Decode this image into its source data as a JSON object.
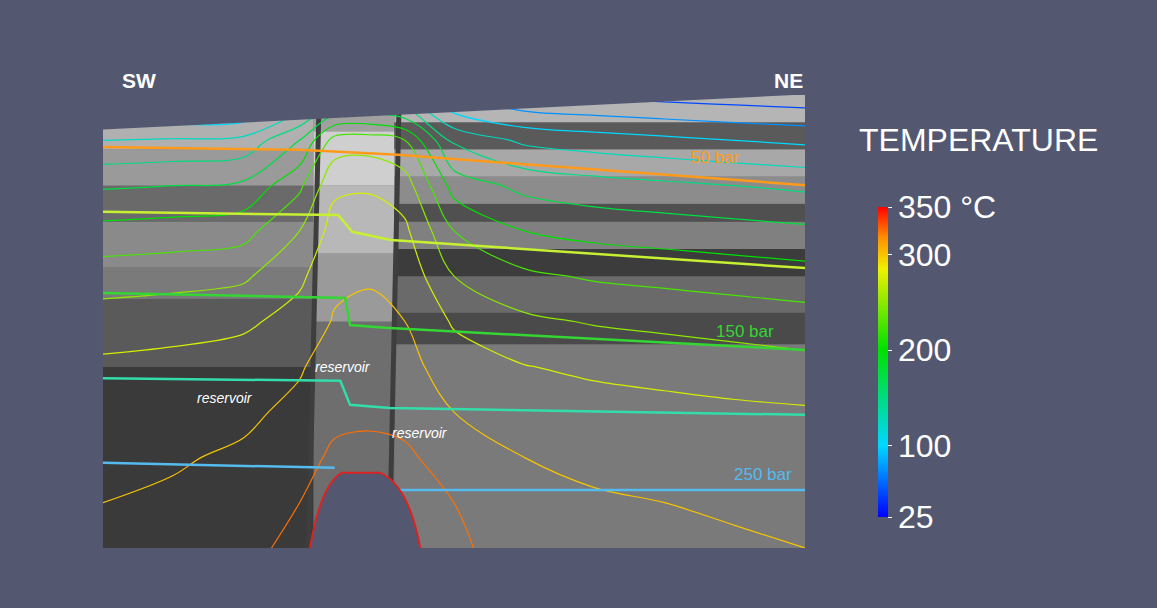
{
  "chart_data": {
    "type": "contour",
    "tick_labels": false,
    "xlim": [
      0,
      100
    ],
    "ylim": [
      0,
      100
    ],
    "corner_labels": {
      "left": "SW",
      "right": "NE"
    },
    "temperature": {
      "x": [
        0,
        10,
        20,
        28,
        33,
        38,
        43,
        50,
        60,
        70,
        80,
        90,
        100
      ],
      "y": [
        0,
        10,
        20,
        30,
        40,
        50,
        60,
        70,
        80,
        90,
        100
      ],
      "z": [
        [
          305,
          308,
          315,
          335,
          350,
          350,
          350,
          330,
          312,
          305,
          303,
          302,
          300
        ],
        [
          300,
          303,
          310,
          325,
          345,
          348,
          345,
          325,
          308,
          302,
          300,
          298,
          297
        ],
        [
          296,
          298,
          303,
          315,
          330,
          332,
          330,
          312,
          300,
          296,
          294,
          292,
          290
        ],
        [
          290,
          292,
          296,
          305,
          318,
          320,
          316,
          300,
          290,
          286,
          283,
          280,
          278
        ],
        [
          280,
          283,
          288,
          298,
          310,
          312,
          308,
          288,
          276,
          270,
          266,
          262,
          258
        ],
        [
          262,
          265,
          270,
          285,
          302,
          305,
          300,
          272,
          255,
          248,
          244,
          240,
          236
        ],
        [
          238,
          241,
          246,
          270,
          295,
          298,
          292,
          250,
          230,
          222,
          218,
          214,
          210
        ],
        [
          208,
          211,
          216,
          250,
          285,
          288,
          280,
          225,
          200,
          192,
          188,
          184,
          180
        ],
        [
          172,
          175,
          180,
          220,
          270,
          272,
          262,
          190,
          168,
          160,
          155,
          150,
          145
        ],
        [
          125,
          128,
          132,
          175,
          235,
          238,
          225,
          145,
          120,
          112,
          106,
          100,
          95
        ],
        [
          45,
          48,
          52,
          95,
          130,
          132,
          122,
          70,
          50,
          45,
          40,
          36,
          32
        ]
      ],
      "levels": {
        "start": 25,
        "end": 350,
        "step": 25
      }
    },
    "colorbar": {
      "title": "TEMPERATURE",
      "range": [
        25,
        350
      ],
      "ticks": [
        25,
        100,
        200,
        300,
        {
          "value": 350,
          "label": "350 °C"
        }
      ]
    },
    "isobars": [
      {
        "color": "#ff9a1a",
        "x": [
          0,
          28,
          42,
          100
        ],
        "y": [
          88.5,
          87.9,
          86.8,
          80.1
        ],
        "label": "50 bar",
        "label_x": 87.2,
        "label_y": 86.3
      },
      {
        "color": "#c8f032",
        "x": [
          0,
          33.5,
          35.5,
          41,
          100
        ],
        "y": [
          74.2,
          73.5,
          69.8,
          68,
          61.8
        ]
      },
      {
        "color": "#33d633",
        "x": [
          0,
          34.5,
          35.2,
          40.2,
          100
        ],
        "y": [
          56.3,
          55.2,
          49.2,
          48.6,
          43.7
        ],
        "label": "150 bar",
        "label_x": 91.5,
        "label_y": 47.7
      },
      {
        "color": "#33ddaa",
        "x": [
          0,
          33.8,
          35.2,
          40.9,
          100
        ],
        "y": [
          37.5,
          36.9,
          31.6,
          30.9,
          29.4
        ]
      },
      {
        "color": "#55bbee",
        "x": [
          0,
          33,
          null,
          41,
          100
        ],
        "y": [
          18.8,
          17.7,
          null,
          12.8,
          12.8
        ],
        "label": "250 bar",
        "label_x": 94.0,
        "label_y": 16.3
      }
    ],
    "annotations": [
      {
        "text": "reservoir",
        "x": 34.2,
        "y": 40
      },
      {
        "text": "reservoir",
        "x": 17.4,
        "y": 33.1
      },
      {
        "text": "reservoir",
        "x": 45.2,
        "y": 25.4
      }
    ]
  }
}
